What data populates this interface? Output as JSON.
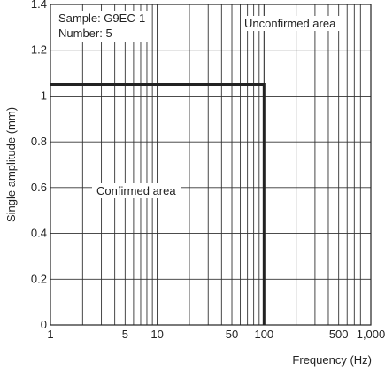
{
  "chart_data": {
    "type": "line",
    "x_scale": "log",
    "xlim": [
      1,
      1000
    ],
    "ylim": [
      0,
      1.4
    ],
    "xlabel": "Frequency (Hz)",
    "ylabel": "Single amplitude (mm)",
    "x_ticks": [
      {
        "value": 1,
        "label": "1"
      },
      {
        "value": 5,
        "label": "5"
      },
      {
        "value": 10,
        "label": "10"
      },
      {
        "value": 50,
        "label": "50"
      },
      {
        "value": 100,
        "label": "100"
      },
      {
        "value": 500,
        "label": "500"
      },
      {
        "value": 1000,
        "label": "1,000"
      }
    ],
    "y_ticks": [
      {
        "value": 0,
        "label": "0"
      },
      {
        "value": 0.2,
        "label": "0.2"
      },
      {
        "value": 0.4,
        "label": "0.4"
      },
      {
        "value": 0.6,
        "label": "0.6"
      },
      {
        "value": 0.8,
        "label": "0.8"
      },
      {
        "value": 1.0,
        "label": "1"
      },
      {
        "value": 1.2,
        "label": "1.2"
      },
      {
        "value": 1.4,
        "label": "1.4"
      }
    ],
    "grid": true,
    "series": [
      {
        "color": "#222222",
        "points": [
          {
            "x": 1,
            "y": 1.05
          },
          {
            "x": 100,
            "y": 1.05
          },
          {
            "x": 100,
            "y": 0
          }
        ]
      }
    ],
    "annotations": {
      "sample": "Sample: G9EC-1",
      "number": "Number: 5",
      "unconfirmed": "Unconfirmed area",
      "confirmed": "Confirmed area"
    }
  }
}
